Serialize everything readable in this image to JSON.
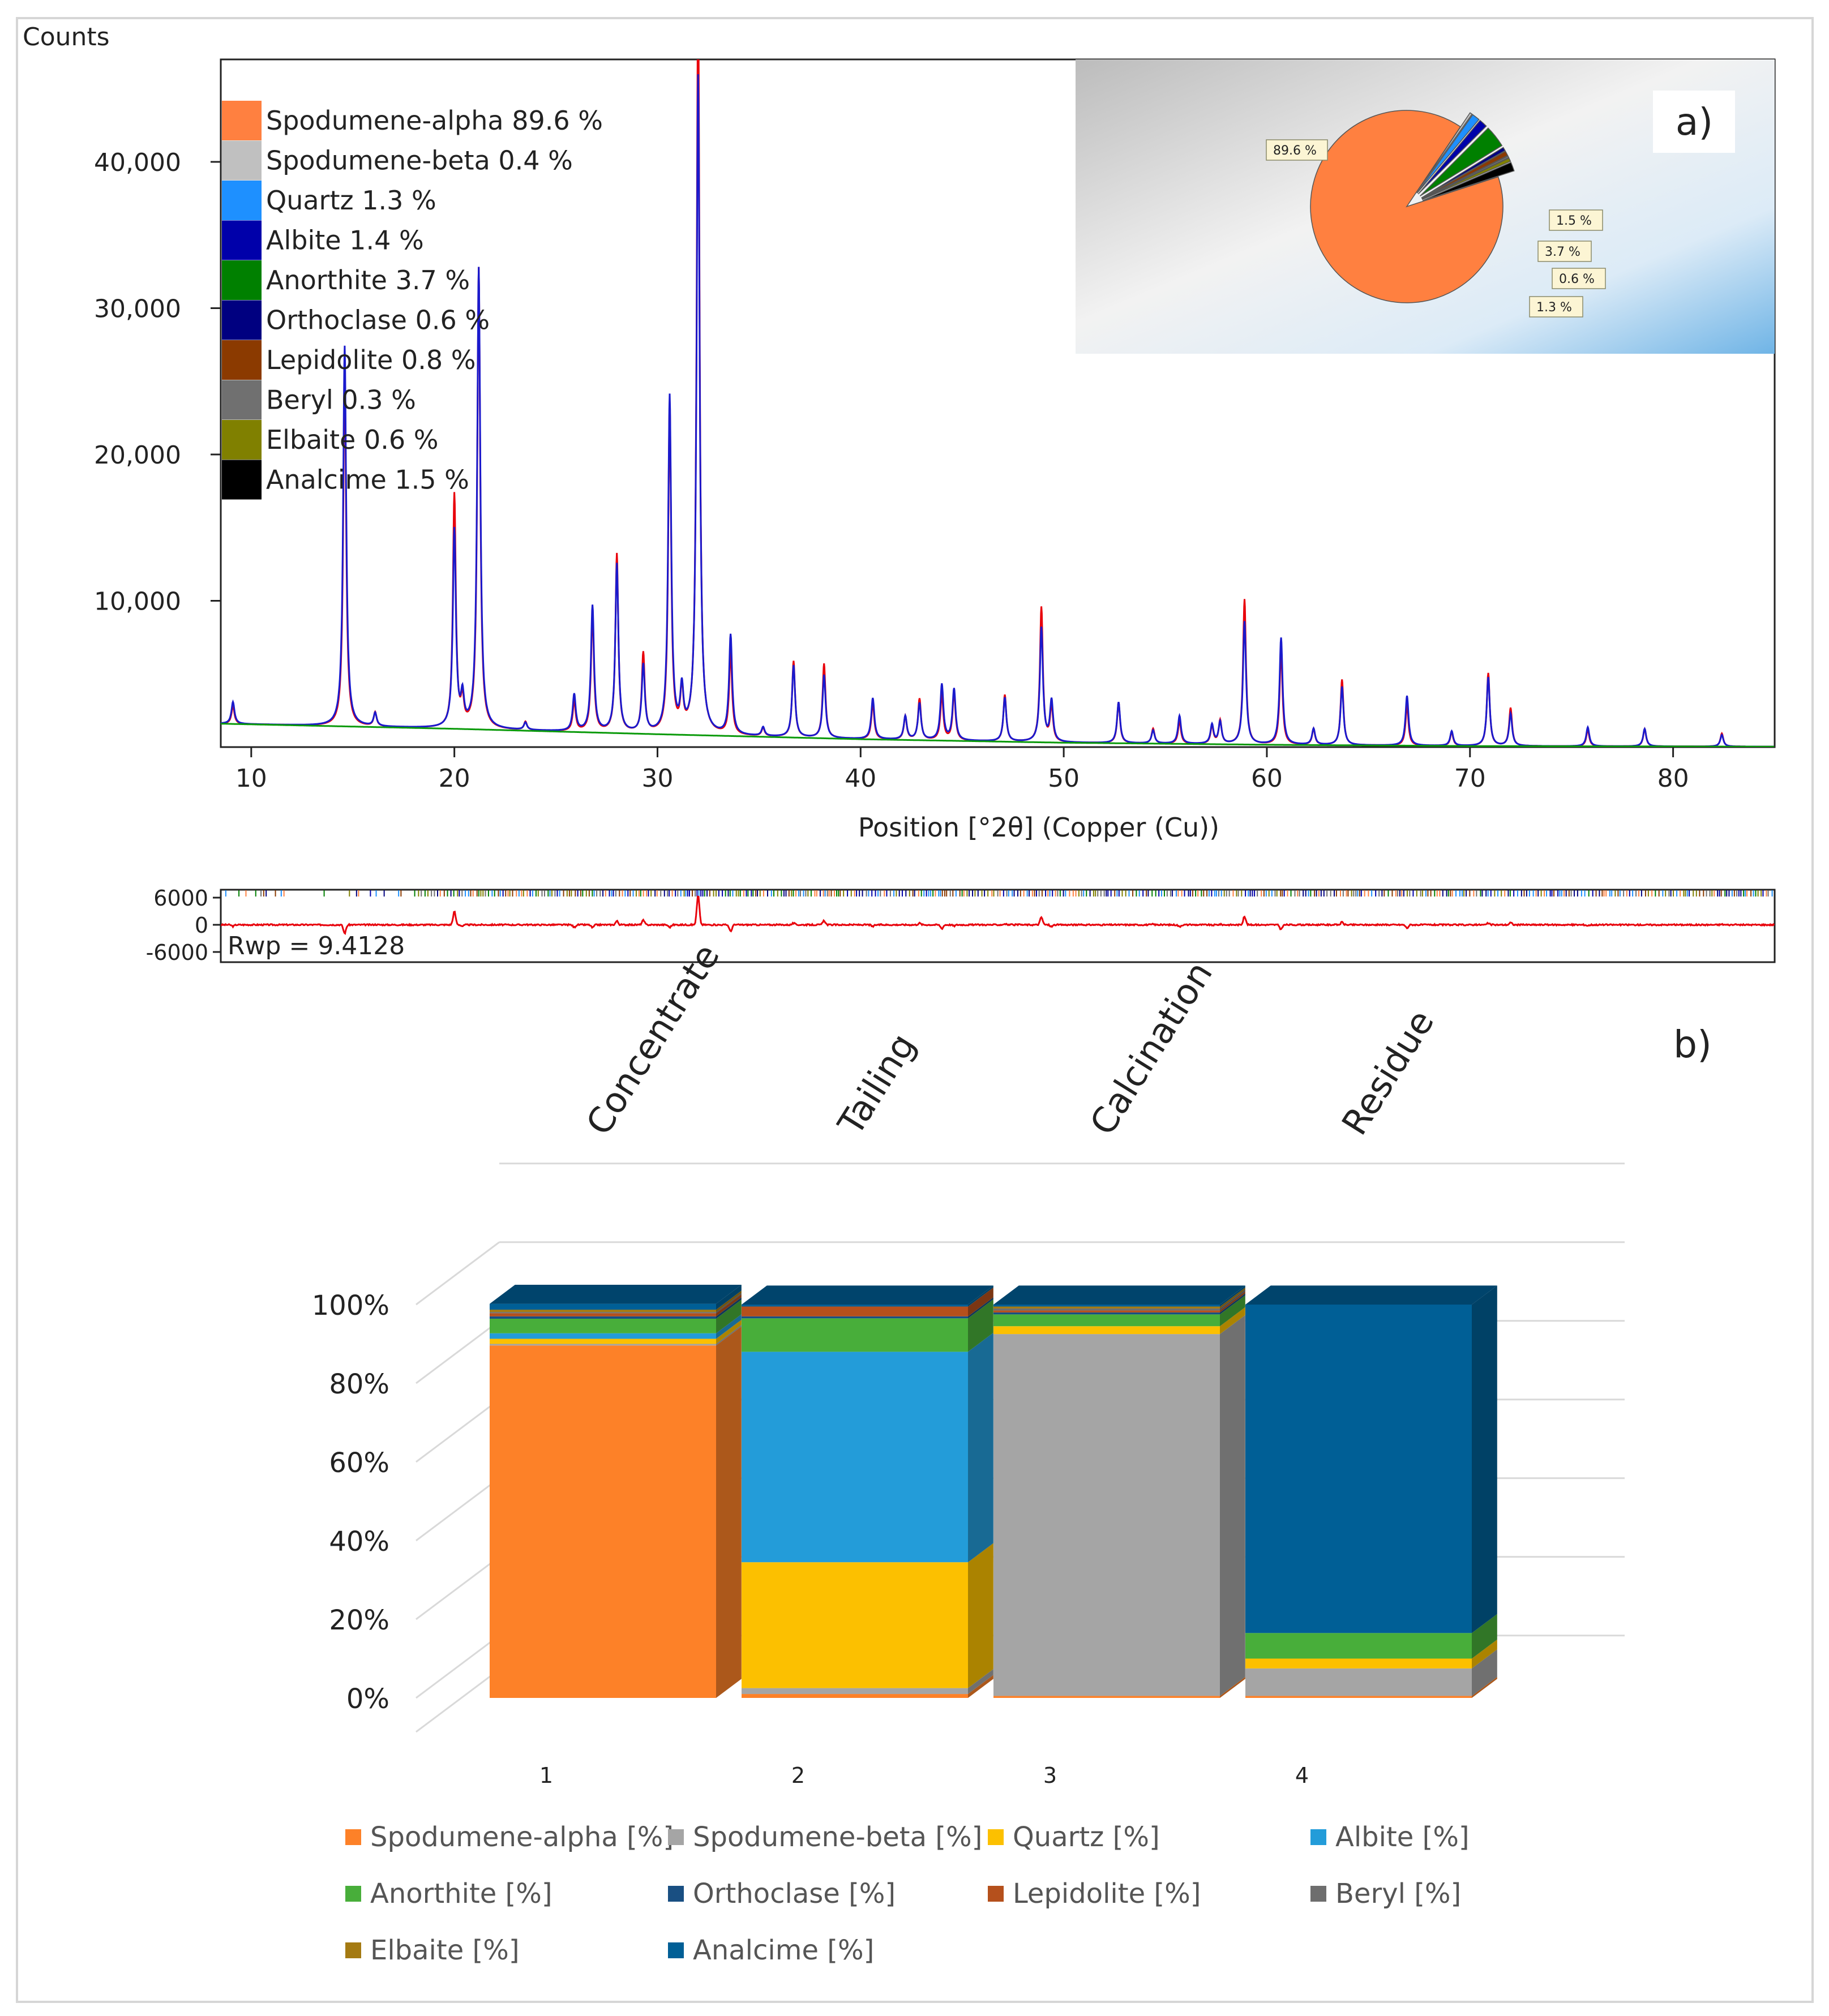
{
  "panel_labels": {
    "a": "a)",
    "b": "b)"
  },
  "chart_data": [
    {
      "type": "line",
      "ylabel": "Counts",
      "xlabel": "Position [°2θ] (Copper (Cu))",
      "xlim": [
        8.5,
        85
      ],
      "ylim": [
        0,
        47000
      ],
      "x_ticks": [
        10,
        20,
        30,
        40,
        50,
        60,
        70,
        80
      ],
      "y_ticks": [
        10000,
        20000,
        30000,
        40000
      ],
      "y_tick_labels": [
        "10,000",
        "20,000",
        "30,000",
        "40,000"
      ],
      "background": [
        [
          8.5,
          1600
        ],
        [
          20,
          1250
        ],
        [
          30,
          880
        ],
        [
          40,
          540
        ],
        [
          50,
          300
        ],
        [
          60,
          160
        ],
        [
          70,
          70
        ],
        [
          85,
          30
        ]
      ],
      "peaks": [
        [
          9.1,
          1500
        ],
        [
          14.6,
          26000
        ],
        [
          16.1,
          900
        ],
        [
          20.0,
          13500
        ],
        [
          20.4,
          2000
        ],
        [
          21.2,
          31500
        ],
        [
          23.5,
          500
        ],
        [
          25.9,
          2500
        ],
        [
          26.8,
          8600
        ],
        [
          28.0,
          11500
        ],
        [
          29.3,
          4600
        ],
        [
          30.6,
          23000
        ],
        [
          31.2,
          2800
        ],
        [
          32.0,
          45000
        ],
        [
          33.6,
          6800
        ],
        [
          35.2,
          600
        ],
        [
          36.7,
          4900
        ],
        [
          38.2,
          4300
        ],
        [
          40.6,
          2800
        ],
        [
          42.2,
          1600
        ],
        [
          42.9,
          2500
        ],
        [
          44.0,
          3800
        ],
        [
          44.6,
          3500
        ],
        [
          47.1,
          3000
        ],
        [
          48.9,
          7800
        ],
        [
          49.4,
          2800
        ],
        [
          52.7,
          2800
        ],
        [
          54.4,
          900
        ],
        [
          55.7,
          1900
        ],
        [
          57.3,
          1300
        ],
        [
          57.7,
          1500
        ],
        [
          58.9,
          8400
        ],
        [
          60.7,
          7300
        ],
        [
          62.3,
          1100
        ],
        [
          63.7,
          4000
        ],
        [
          66.9,
          3400
        ],
        [
          69.1,
          1000
        ],
        [
          70.9,
          4700
        ],
        [
          72.0,
          2200
        ],
        [
          75.8,
          1300
        ],
        [
          78.6,
          1200
        ],
        [
          82.4,
          800
        ]
      ],
      "series": [
        {
          "name": "",
          "color": "#e8000b"
        },
        {
          "name": "",
          "color": "#1a1acd"
        },
        {
          "name": "",
          "color": "#0a9a0a"
        }
      ],
      "legend": [
        {
          "label": "Spodumene-alpha 89.6 %",
          "color": "#ff8040"
        },
        {
          "label": "Spodumene-beta 0.4 %",
          "color": "#c0c0c0"
        },
        {
          "label": "Quartz 1.3 %",
          "color": "#1e90ff"
        },
        {
          "label": "Albite 1.4 %",
          "color": "#0000aa"
        },
        {
          "label": "Anorthite 3.7 %",
          "color": "#008000"
        },
        {
          "label": "Orthoclase 0.6 %",
          "color": "#000080"
        },
        {
          "label": "Lepidolite 0.8 %",
          "color": "#8b3a00"
        },
        {
          "label": "Beryl 0.3 %",
          "color": "#707070"
        },
        {
          "label": "Elbaite 0.6 %",
          "color": "#808000"
        },
        {
          "label": "Analcime 1.5 %",
          "color": "#000000"
        }
      ]
    },
    {
      "type": "pie",
      "slices": [
        {
          "name": "Spodumene-alpha",
          "value": 89.6,
          "color": "#ff8040"
        },
        {
          "name": "Spodumene-beta",
          "value": 0.4,
          "color": "#c0c0c0"
        },
        {
          "name": "Quartz",
          "value": 1.3,
          "color": "#1e90ff"
        },
        {
          "name": "Albite",
          "value": 1.4,
          "color": "#0000aa"
        },
        {
          "name": "Anorthite",
          "value": 3.7,
          "color": "#008000"
        },
        {
          "name": "Orthoclase",
          "value": 0.6,
          "color": "#000080"
        },
        {
          "name": "Lepidolite",
          "value": 0.8,
          "color": "#8b3a00"
        },
        {
          "name": "Beryl",
          "value": 0.3,
          "color": "#707070"
        },
        {
          "name": "Elbaite",
          "value": 0.6,
          "color": "#808000"
        },
        {
          "name": "Analcime",
          "value": 1.5,
          "color": "#000000"
        }
      ],
      "labels": [
        "89.6 %",
        "1.5 %",
        "3.7 %",
        "0.6 %",
        "1.3 %"
      ]
    },
    {
      "type": "line",
      "ylim": [
        -6000,
        6000
      ],
      "y_tick_labels": [
        "6000",
        "0",
        "-6000"
      ],
      "annotation": "Rwp = 9.4128",
      "color": "#e8000b"
    },
    {
      "type": "bar",
      "stacked": true,
      "categories": [
        "1",
        "2",
        "3",
        "4"
      ],
      "category_titles": [
        "Concentrate",
        "Tailing",
        "Calcination",
        "Residue"
      ],
      "y_tick_labels": [
        "0%",
        "20%",
        "40%",
        "60%",
        "80%",
        "100%"
      ],
      "ylim": [
        0,
        100
      ],
      "series": [
        {
          "name": "Spodumene-alpha [%]",
          "color": "#fd8128",
          "values": [
            89.6,
            1,
            0.5,
            0.5
          ]
        },
        {
          "name": "Spodumene-beta [%]",
          "color": "#a5a5a5",
          "values": [
            0.4,
            1.5,
            92,
            7
          ]
        },
        {
          "name": "Quartz [%]",
          "color": "#fcc000",
          "values": [
            1.3,
            32,
            2,
            2.5
          ]
        },
        {
          "name": "Albite [%]",
          "color": "#239cd9",
          "values": [
            1.4,
            53.5,
            0,
            0
          ]
        },
        {
          "name": "Anorthite [%]",
          "color": "#48ae3a",
          "values": [
            3.7,
            8.5,
            3,
            6.5
          ]
        },
        {
          "name": "Orthoclase [%]",
          "color": "#194f82",
          "values": [
            0.6,
            0.5,
            0.5,
            0
          ]
        },
        {
          "name": "Lepidolite [%]",
          "color": "#b5501c",
          "values": [
            0.8,
            2.5,
            0.5,
            0
          ]
        },
        {
          "name": "Beryl [%]",
          "color": "#6e6e6e",
          "values": [
            0.3,
            0,
            0.5,
            0
          ]
        },
        {
          "name": "Elbaite [%]",
          "color": "#a47a12",
          "values": [
            0.6,
            0,
            0.5,
            0
          ]
        },
        {
          "name": "Analcime [%]",
          "color": "#005f96",
          "values": [
            1.5,
            0.5,
            0.5,
            83.5
          ]
        }
      ]
    }
  ]
}
